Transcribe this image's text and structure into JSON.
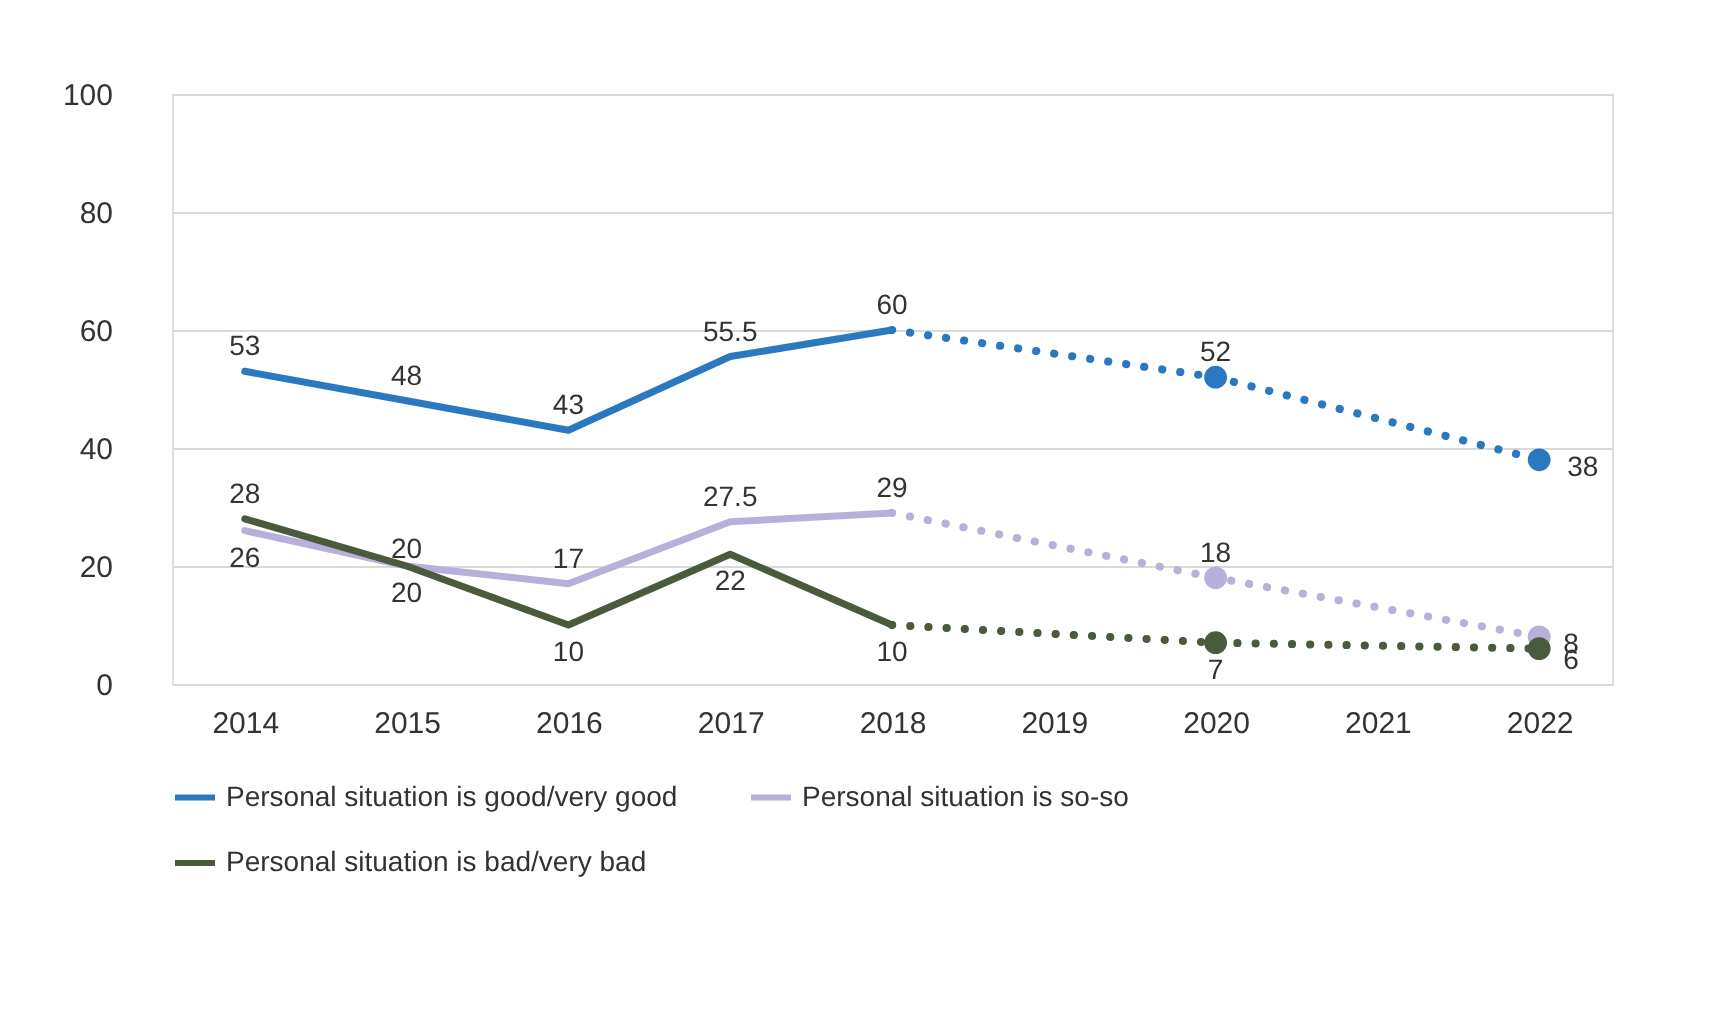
{
  "chart_data": {
    "type": "line",
    "xlim": [
      2013.55,
      2022.45
    ],
    "xticks": [
      2014,
      2015,
      2016,
      2017,
      2018,
      2019,
      2020,
      2021,
      2022
    ],
    "ylim": [
      0,
      100
    ],
    "yticks": [
      0,
      20,
      40,
      60,
      80,
      100
    ],
    "grid": "y",
    "legend": "bottom",
    "series": [
      {
        "name": "Personal situation is good/very good",
        "color": "#2a78c0",
        "x": [
          2014,
          2015,
          2016,
          2017,
          2018
        ],
        "values": [
          53,
          48,
          43,
          55.5,
          60
        ],
        "value_labels": [
          "53",
          "48",
          "43",
          "55.5",
          "60"
        ],
        "line_style": "solid"
      },
      {
        "color": "#2a78c0",
        "x": [
          2018,
          2020,
          2022
        ],
        "values": [
          60,
          52,
          38
        ],
        "value_labels": [
          null,
          "52",
          "38"
        ],
        "line_style": "dotted",
        "marker": "circle"
      },
      {
        "name": "Personal situation is so-so",
        "color": "#b8b0db",
        "x": [
          2014,
          2015,
          2016,
          2017,
          2018
        ],
        "values": [
          26,
          20,
          17,
          27.5,
          29
        ],
        "value_labels": [
          "26",
          "20",
          "17",
          "27.5",
          "29"
        ],
        "line_style": "solid"
      },
      {
        "color": "#b8b0db",
        "x": [
          2018,
          2020,
          2022
        ],
        "values": [
          29,
          18,
          8
        ],
        "value_labels": [
          null,
          "18",
          "8"
        ],
        "line_style": "dotted",
        "marker": "circle"
      },
      {
        "name": "Personal situation is bad/very bad",
        "color": "#4a5a3c",
        "x": [
          2014,
          2015,
          2016,
          2017,
          2018
        ],
        "values": [
          28,
          20,
          10,
          22,
          10
        ],
        "value_labels": [
          "28",
          "20",
          "10",
          "22",
          "10"
        ],
        "line_style": "solid"
      },
      {
        "color": "#4a5a3c",
        "x": [
          2018,
          2020,
          2022
        ],
        "values": [
          10,
          7,
          6
        ],
        "value_labels": [
          null,
          "7",
          "6"
        ],
        "line_style": "dotted",
        "marker": "circle"
      }
    ]
  }
}
